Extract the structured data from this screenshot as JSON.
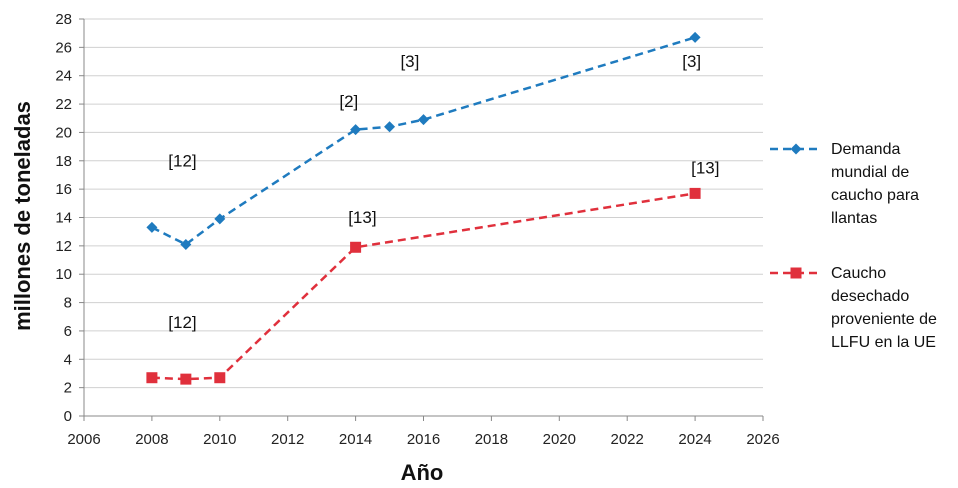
{
  "chart_data": {
    "type": "line",
    "xlabel": "Año",
    "ylabel": "millones de toneladas",
    "xlim": [
      2006,
      2026
    ],
    "ylim": [
      0,
      28
    ],
    "xticks": [
      2006,
      2008,
      2010,
      2012,
      2014,
      2016,
      2018,
      2020,
      2022,
      2024,
      2026
    ],
    "yticks": [
      0,
      2,
      4,
      6,
      8,
      10,
      12,
      14,
      16,
      18,
      20,
      22,
      24,
      26,
      28
    ],
    "grid": "horizontal",
    "legend_position": "right",
    "series": [
      {
        "name": "Demanda mundial de caucho para llantas",
        "legend_lines": [
          "Demanda",
          "mundial de",
          "caucho para",
          "llantas"
        ],
        "color": "#1f7bbf",
        "marker": "diamond",
        "line_style": "dashed",
        "x": [
          2008,
          2009,
          2010,
          2014,
          2015,
          2016,
          2024
        ],
        "y": [
          13.3,
          12.1,
          13.9,
          20.2,
          20.4,
          20.9,
          26.7
        ]
      },
      {
        "name": "Caucho desechado proveniente de LLFU en la UE",
        "legend_lines": [
          "Caucho",
          "desechado",
          "proveniente de",
          "LLFU en la UE"
        ],
        "color": "#e0303c",
        "marker": "square",
        "line_style": "dashed",
        "x": [
          2008,
          2009,
          2010,
          2014,
          2024
        ],
        "y": [
          2.7,
          2.6,
          2.7,
          11.9,
          15.7
        ]
      }
    ],
    "annotations": [
      {
        "text": "[12]",
        "x": 2008.9,
        "y": 17.6
      },
      {
        "text": "[2]",
        "x": 2013.8,
        "y": 21.8
      },
      {
        "text": "[3]",
        "x": 2015.6,
        "y": 24.6
      },
      {
        "text": "[3]",
        "x": 2023.9,
        "y": 24.6
      },
      {
        "text": "[13]",
        "x": 2024.3,
        "y": 17.1
      },
      {
        "text": "[13]",
        "x": 2014.2,
        "y": 13.6
      },
      {
        "text": "[12]",
        "x": 2008.9,
        "y": 6.2
      }
    ]
  }
}
